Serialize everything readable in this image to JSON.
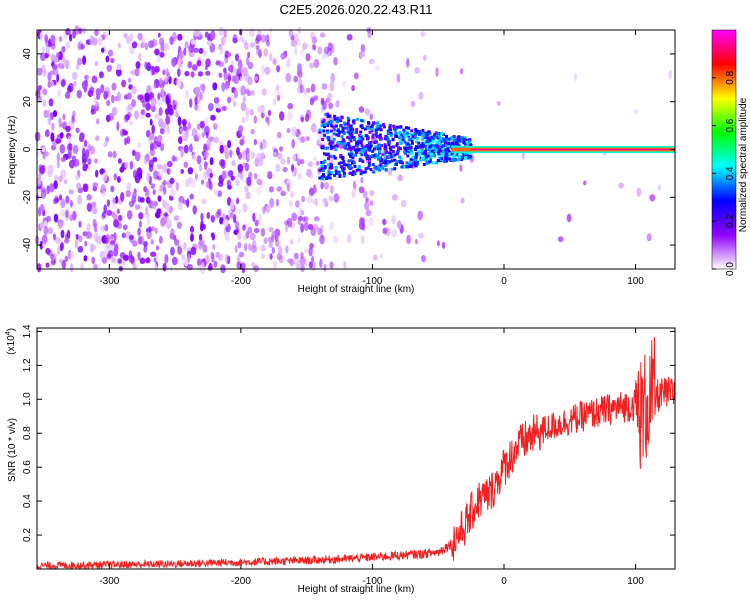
{
  "title": "C2E5.2026.020.22.43.R11",
  "chart_data": [
    {
      "type": "heatmap",
      "xlabel": "Height of straight line (km)",
      "ylabel": "Frequency (Hz)",
      "xlim": [
        -355,
        130
      ],
      "ylim": [
        -50,
        50
      ],
      "xticks": [
        -300,
        -200,
        -100,
        0,
        100
      ],
      "yticks": [
        -40,
        -20,
        0,
        20,
        40
      ],
      "colorbar": {
        "label": "Normalized spectral amplitude",
        "ticks": [
          0.0,
          0.2,
          0.4,
          0.6,
          0.8
        ],
        "range": [
          0,
          1
        ],
        "colors": [
          "#ffffff",
          "#9000ff",
          "#0000ff",
          "#00ffff",
          "#00ff00",
          "#ffff00",
          "#ff0000",
          "#ff00ff"
        ]
      },
      "description_regions": [
        {
          "x_range": [
            -355,
            -140
          ],
          "freq_range": [
            -50,
            50
          ],
          "amplitude": 0.08
        },
        {
          "x_range": [
            -140,
            -40
          ],
          "freq_range": [
            -10,
            12
          ],
          "amplitude": 0.3
        },
        {
          "x_range": [
            -40,
            130
          ],
          "freq_range": [
            -1.5,
            1.5
          ],
          "amplitude": 0.85
        }
      ]
    },
    {
      "type": "line",
      "xlabel": "Height of straight line (km)",
      "ylabel": "SNR (10 * v/v)",
      "multiplier_label": "(x10",
      "multiplier_exp": "4",
      "xlim": [
        -355,
        130
      ],
      "ylim": [
        0,
        1.42
      ],
      "xticks": [
        -300,
        -200,
        -100,
        0,
        100
      ],
      "yticks": [
        0.2,
        0.4,
        0.6,
        0.8,
        1.0,
        1.2,
        1.4
      ],
      "color": "#ee2222",
      "series": [
        {
          "x": [
            -355,
            -300,
            -250,
            -200,
            -150,
            -120,
            -100,
            -80,
            -60,
            -50,
            -40,
            -30,
            -20,
            -10,
            0,
            10,
            20,
            30,
            40,
            60,
            80,
            100,
            105,
            110,
            115,
            130
          ],
          "y": [
            0.02,
            0.025,
            0.03,
            0.04,
            0.05,
            0.06,
            0.07,
            0.08,
            0.09,
            0.1,
            0.15,
            0.25,
            0.4,
            0.45,
            0.6,
            0.72,
            0.78,
            0.82,
            0.85,
            0.9,
            0.94,
            0.97,
            0.9,
            1.0,
            1.02,
            1.04
          ]
        }
      ]
    }
  ]
}
